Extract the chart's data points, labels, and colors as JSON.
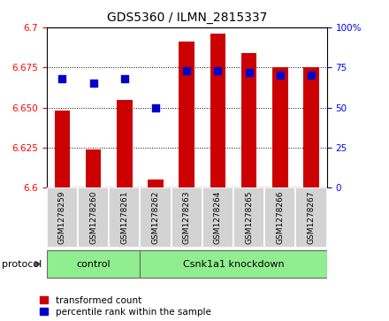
{
  "title": "GDS5360 / ILMN_2815337",
  "samples": [
    "GSM1278259",
    "GSM1278260",
    "GSM1278261",
    "GSM1278262",
    "GSM1278263",
    "GSM1278264",
    "GSM1278265",
    "GSM1278266",
    "GSM1278267"
  ],
  "red_values": [
    6.648,
    6.624,
    6.655,
    6.605,
    6.691,
    6.696,
    6.684,
    6.675,
    6.675
  ],
  "blue_values": [
    68,
    65,
    68,
    50,
    73,
    73,
    72,
    70,
    70
  ],
  "ylim_left": [
    6.6,
    6.7
  ],
  "ylim_right": [
    0,
    100
  ],
  "yticks_left": [
    6.6,
    6.625,
    6.65,
    6.675,
    6.7
  ],
  "yticks_right": [
    0,
    25,
    50,
    75,
    100
  ],
  "bar_color": "#CC0000",
  "dot_color": "#0000CC",
  "bar_width": 0.5,
  "dot_size": 30,
  "title_fontsize": 10,
  "tick_fontsize": 7.5,
  "sample_fontsize": 6.5,
  "legend_fontsize": 7.5,
  "legend_items": [
    "transformed count",
    "percentile rank within the sample"
  ],
  "group_box_color": "#90EE90",
  "gray_box_color": "#d3d3d3"
}
